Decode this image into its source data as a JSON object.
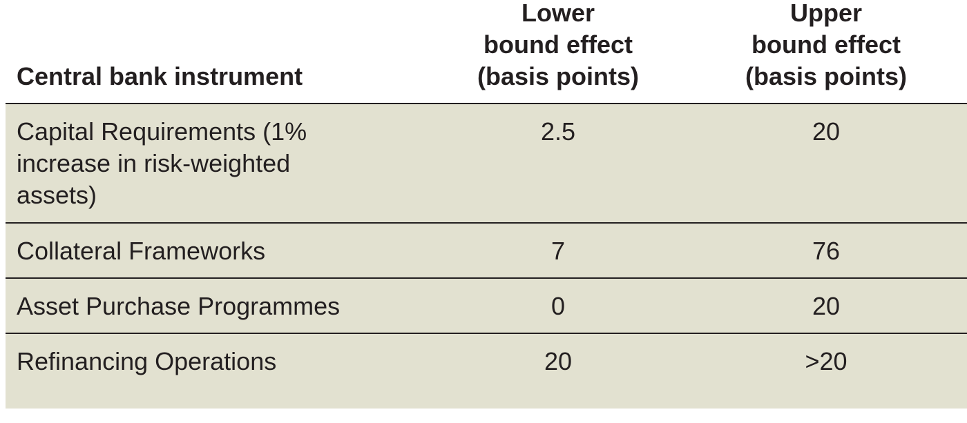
{
  "table": {
    "headers": {
      "instrument": "Central bank instrument",
      "lower": "Lower\nbound effect\n(basis points)",
      "upper": "Upper\nbound effect\n(basis points)"
    },
    "rows": [
      {
        "instrument": "Capital Requirements (1% increase in risk-weighted assets)",
        "lower": "2.5",
        "upper": "20"
      },
      {
        "instrument": "Collateral Frameworks",
        "lower": "7",
        "upper": "76"
      },
      {
        "instrument": "Asset Purchase Programmes",
        "lower": "0",
        "upper": "20"
      },
      {
        "instrument": "Refinancing Operations",
        "lower": "20",
        "upper": ">20"
      }
    ]
  },
  "colors": {
    "body_background": "#e2e1d0",
    "rule": "#231f20",
    "text": "#231f20"
  }
}
